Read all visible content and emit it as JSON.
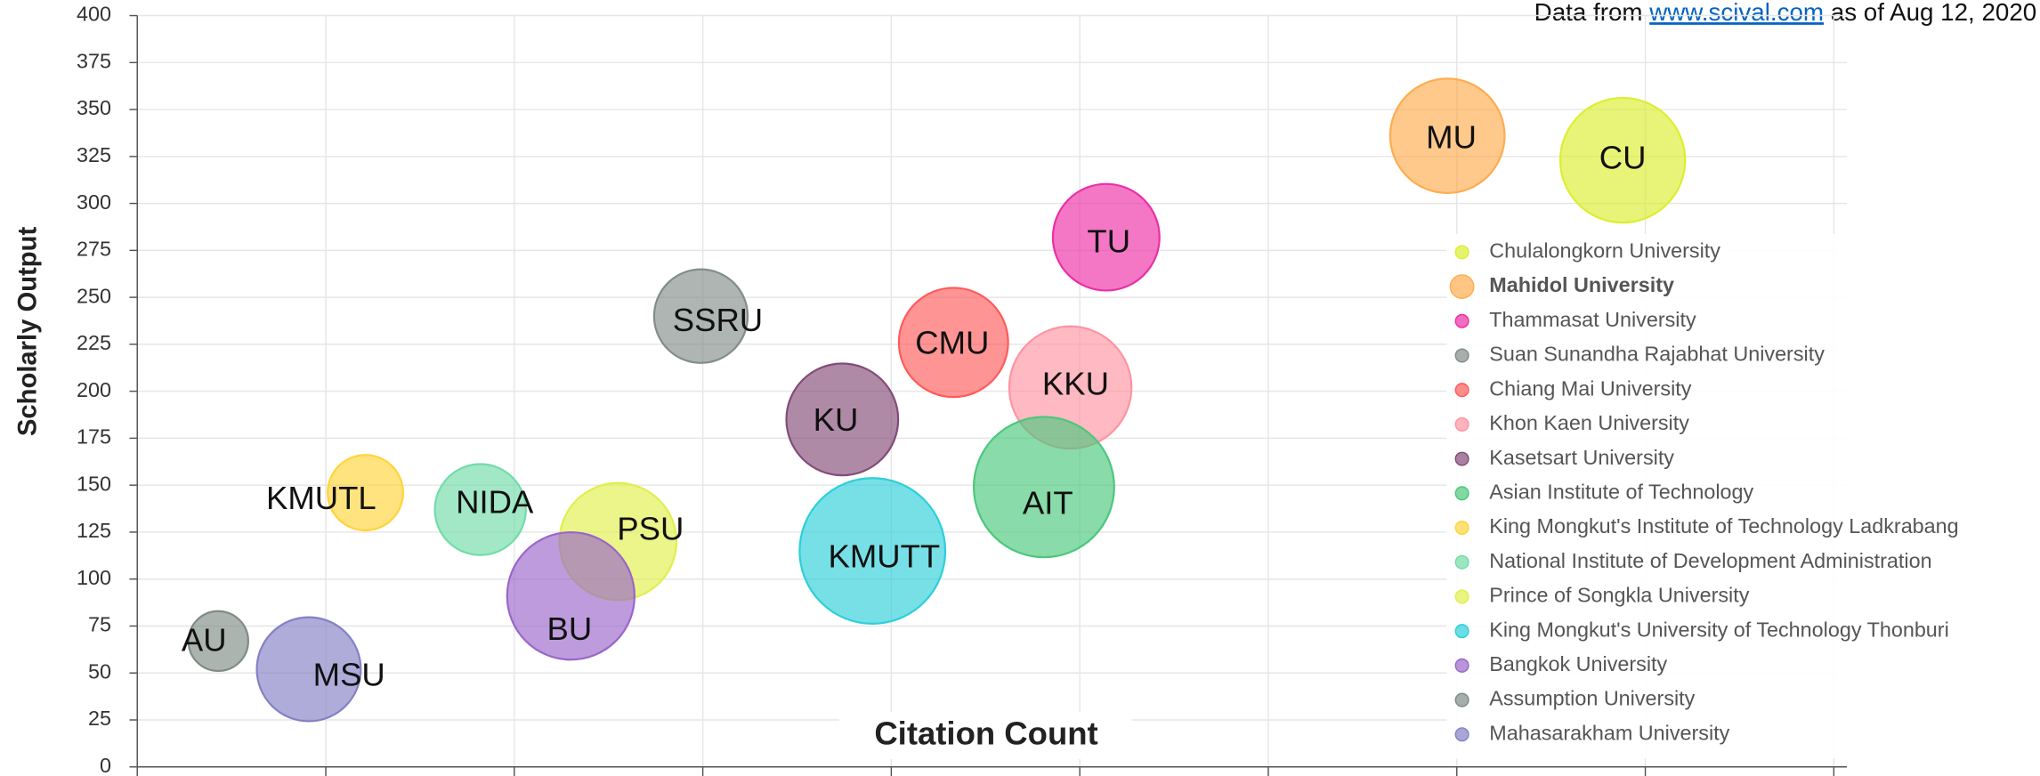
{
  "chart_data": {
    "type": "bubble",
    "annotation": {
      "prefix": "Data from ",
      "link": "www.scival.com",
      "suffix": " as of Aug 12, 2020"
    },
    "ylabel": "Scholarly Output",
    "xlabel": "Citation Count",
    "ylim": [
      0,
      400
    ],
    "yticks": [
      0,
      25,
      50,
      75,
      100,
      125,
      150,
      175,
      200,
      225,
      250,
      275,
      300,
      325,
      350,
      375,
      400
    ],
    "xlim": [
      0,
      9
    ],
    "xticks": [
      0,
      1,
      2,
      3,
      4,
      5,
      6,
      7,
      8,
      9
    ],
    "grid": true,
    "legend": "right",
    "legend_highlight": 1,
    "series": [
      {
        "name": "Chulalongkorn University",
        "label": "CU",
        "color": "#dcee2e",
        "x": 7.88,
        "y": 323,
        "size": 48
      },
      {
        "name": "Mahidol University",
        "label": "MU",
        "color": "#ffac4f",
        "x": 6.95,
        "y": 336,
        "size": 44
      },
      {
        "name": "Thammasat University",
        "label": "TU",
        "color": "#ec2ea6",
        "x": 5.14,
        "y": 282,
        "size": 41
      },
      {
        "name": "Suan Sunandha Rajabhat University",
        "label": "SSRU",
        "color": "#838d88",
        "x": 2.99,
        "y": 240,
        "size": 36
      },
      {
        "name": "Chiang Mai University",
        "label": "CMU",
        "color": "#ff5a5a",
        "x": 4.33,
        "y": 226,
        "size": 42
      },
      {
        "name": "Khon Kaen University",
        "label": "KKU",
        "color": "#ff93a2",
        "x": 4.95,
        "y": 202,
        "size": 47
      },
      {
        "name": "Kasetsart University",
        "label": "KU",
        "color": "#844b78",
        "x": 3.74,
        "y": 185,
        "size": 43
      },
      {
        "name": "Asian Institute of Technology",
        "label": "AIT",
        "color": "#4cc77c",
        "x": 4.81,
        "y": 149,
        "size": 54
      },
      {
        "name": "King Mongkut's Institute of Technology Ladkrabang",
        "label": "KMUTL",
        "color": "#ffd43a",
        "x": 1.21,
        "y": 146,
        "size": 29
      },
      {
        "name": "National Institute of Development Administration",
        "label": "NIDA",
        "color": "#72dca7",
        "x": 1.82,
        "y": 137,
        "size": 35
      },
      {
        "name": "Prince of Songkla University",
        "label": "PSU",
        "color": "#e0ef4c",
        "x": 2.55,
        "y": 120,
        "size": 45
      },
      {
        "name": "King Mongkut's University of Technology Thonburi",
        "label": "KMUTT",
        "color": "#2ccfd9",
        "x": 3.9,
        "y": 115,
        "size": 56
      },
      {
        "name": "Bangkok University",
        "label": "BU",
        "color": "#9a66c9",
        "x": 2.3,
        "y": 91,
        "size": 49
      },
      {
        "name": "Assumption University",
        "label": "AU",
        "color": "#7f8c86",
        "x": 0.43,
        "y": 67,
        "size": 23
      },
      {
        "name": "Mahasarakham University",
        "label": "MSU",
        "color": "#8580c4",
        "x": 0.91,
        "y": 52,
        "size": 40
      }
    ]
  }
}
